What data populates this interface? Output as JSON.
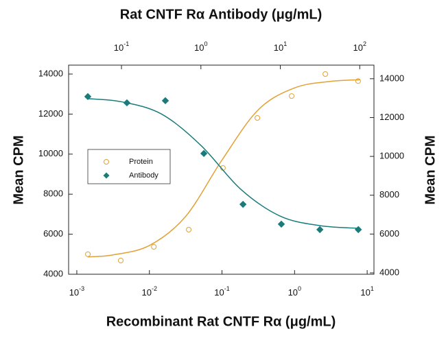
{
  "chart_data": {
    "type": "scatter",
    "title": "Rat CNTF Rα Antibody (μg/mL)",
    "x_label": "Recombinant Rat CNTF Rα (μg/mL)",
    "y_label": "Mean CPM",
    "y2_label": "Mean CPM",
    "log_x": true,
    "xlim": [
      0.000771,
      12.4
    ],
    "xticks": [
      {
        "value": 0.001,
        "label": "10",
        "exponent": "-3"
      },
      {
        "value": 0.01,
        "label": "10",
        "exponent": "-2"
      },
      {
        "value": 0.1,
        "label": "10",
        "exponent": "-1"
      },
      {
        "value": 1,
        "label": "10",
        "exponent": "0"
      },
      {
        "value": 10,
        "label": "10",
        "exponent": "1"
      }
    ],
    "x2lim": [
      0.0216,
      151
    ],
    "x2ticks": [
      {
        "value": 0.1,
        "label": "10",
        "exponent": "-1"
      },
      {
        "value": 1,
        "label": "10",
        "exponent": "0"
      },
      {
        "value": 10,
        "label": "10",
        "exponent": "1"
      },
      {
        "value": 100,
        "label": "10",
        "exponent": "2"
      }
    ],
    "ylim": [
      4000,
      14445
    ],
    "yticks": [
      4000,
      6000,
      8000,
      10000,
      12000,
      14000
    ],
    "y2lim": [
      3930,
      14700
    ],
    "y2ticks": [
      4000,
      6000,
      8000,
      10000,
      12000,
      14000
    ],
    "legend_position": "middle-left",
    "series": [
      {
        "name": "Protein",
        "color": "#e3a034",
        "marker": "circle",
        "axis": "y",
        "x_axis": "x",
        "x": [
          0.00142,
          0.00403,
          0.0115,
          0.0348,
          0.103,
          0.307,
          0.91,
          2.65,
          7.5
        ],
        "values": [
          5000,
          4685,
          5370,
          6226,
          9308,
          11808,
          12900,
          14000,
          13650
        ],
        "fit": {
          "x": [
            0.00141,
            0.00316,
            0.01,
            0.0316,
            0.1,
            0.316,
            1,
            3.16,
            7.94
          ],
          "values": [
            4865,
            4969,
            5436,
            6891,
            9706,
            12215,
            13308,
            13635,
            13712
          ]
        }
      },
      {
        "name": "Antibody",
        "color": "#1a7b7b",
        "marker": "diamond",
        "axis": "y2",
        "x_axis": "x2",
        "x": [
          0.0377,
          0.117,
          0.357,
          1.09,
          3.39,
          10.3,
          31.5,
          96
        ],
        "values": [
          13081,
          12760,
          12870,
          10150,
          7530,
          6510,
          6230,
          6230
        ],
        "fit": {
          "x": [
            0.038,
            0.1,
            0.316,
            1,
            3.16,
            10,
            31.6,
            95.5
          ],
          "values": [
            12973,
            12813,
            12191,
            10567,
            8317,
            6922,
            6432,
            6299
          ]
        }
      }
    ]
  }
}
